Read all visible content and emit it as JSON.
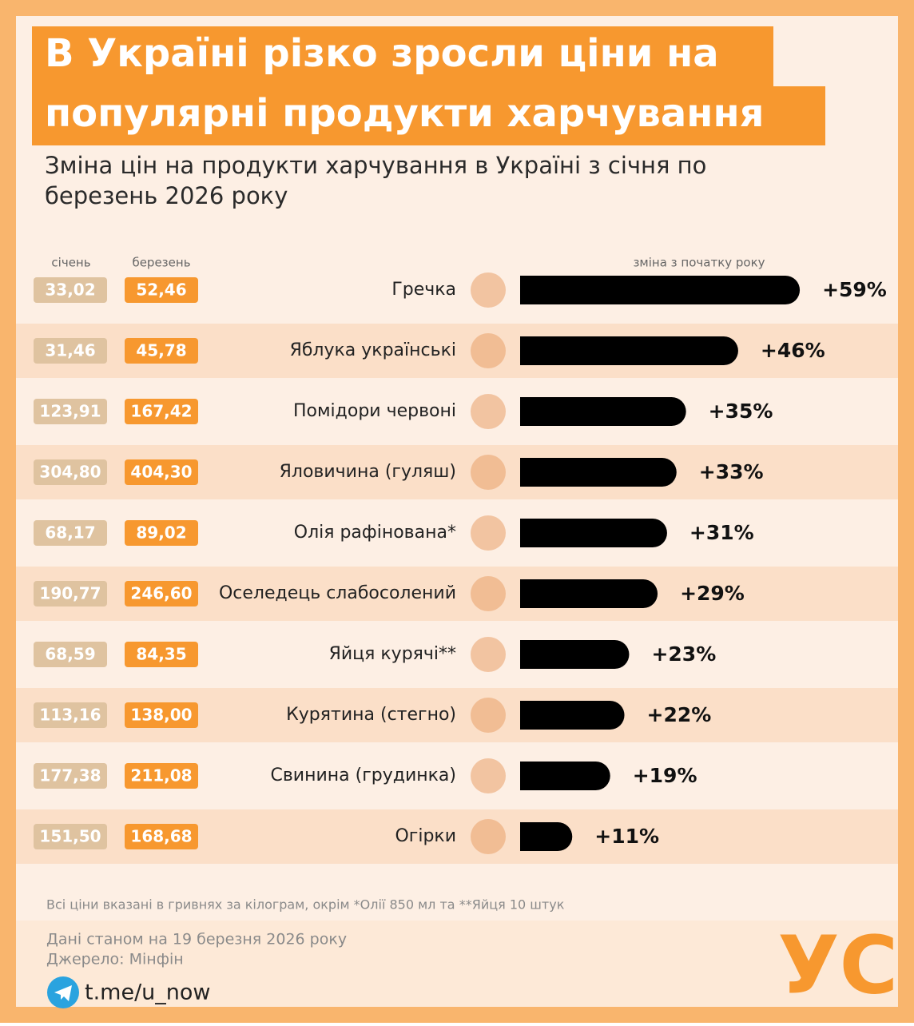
{
  "chart_data": {
    "type": "bar",
    "title_lines": [
      "В Україні різко зросли ціни на",
      "популярні продукти харчування"
    ],
    "subtitle_lines": [
      "Зміна цін на продукти харчування в Україні з січня по",
      "березень 2026 року"
    ],
    "price_headers": [
      "січень",
      "березень"
    ],
    "value_header": "зміна з початку року",
    "categories": [
      "Гречка",
      "Яблука українські",
      "Помідори червоні",
      "Яловичина (гуляш)",
      "Олія рафінована*",
      "Оселедець слабосолений",
      "Яйця курячі**",
      "Курятина (стегно)",
      "Свинина (грудинка)",
      "Огірки"
    ],
    "prices_january": [
      "33,02",
      "31,46",
      "123,91",
      "304,80",
      "68,17",
      "190,77",
      "68,59",
      "113,16",
      "177,38",
      "151,50"
    ],
    "prices_march": [
      "52,46",
      "45,78",
      "167,42",
      "404,30",
      "89,02",
      "246,60",
      "84,35",
      "138,00",
      "211,08",
      "168,68"
    ],
    "values": [
      59,
      46,
      35,
      33,
      31,
      29,
      23,
      22,
      19,
      11
    ],
    "value_labels": [
      "+59%",
      "+46%",
      "+35%",
      "+33%",
      "+31%",
      "+29%",
      "+23%",
      "+22%",
      "+19%",
      "+11%"
    ],
    "color": "#000000",
    "xlim": [
      0,
      60
    ],
    "footnote": "Всі ціни вказані в гривнях за кілограм, окрім *Олії 850 мл та **Яйця 10 штук",
    "date_note": "Дані станом на 19 березня 2026 року",
    "source": "Джерело: Мінфін",
    "link": "t.me/u_now",
    "logo": "УС"
  }
}
